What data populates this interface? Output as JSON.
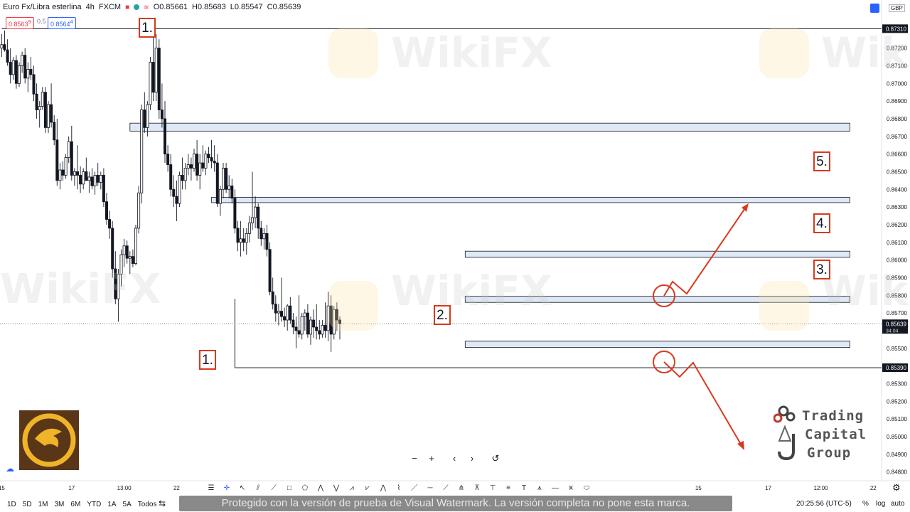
{
  "header": {
    "symbol": "Euro Fx/Libra esterlina",
    "interval": "4h",
    "exchange": "FXCM",
    "ohlc": {
      "o_label": "O",
      "o_value": "0.85661",
      "h_label": "H",
      "h_value": "0.85683",
      "l_label": "L",
      "l_value": "0.85547",
      "c_label": "C",
      "c_value": "0.85639"
    },
    "sell_price": "0.8563",
    "sell_price_sup": "9",
    "spread": "0.5",
    "buy_price": "0.8564",
    "buy_price_sup": "4",
    "currency": "GBP"
  },
  "colors": {
    "up": "#131722",
    "down": "#131722",
    "zone_fill": "#dfe9f5",
    "zone_stroke": "#131722",
    "annotation": "#d9381e",
    "sell": "#f23645",
    "buy": "#2962ff"
  },
  "chart_data": {
    "type": "candlestick",
    "y_range": [
      0.8475,
      0.874
    ],
    "y_ticks": [
      "0.87200",
      "0.87100",
      "0.87000",
      "0.86900",
      "0.86800",
      "0.86700",
      "0.86600",
      "0.86500",
      "0.86400",
      "0.86300",
      "0.86200",
      "0.86100",
      "0.86000",
      "0.85900",
      "0.85800",
      "0.85700",
      "0.85600",
      "0.85500",
      "0.85400",
      "0.85300",
      "0.85200",
      "0.85100",
      "0.85000",
      "0.84900",
      "0.84800"
    ],
    "y_tick_values": [
      0.872,
      0.871,
      0.87,
      0.869,
      0.868,
      0.867,
      0.866,
      0.865,
      0.864,
      0.863,
      0.862,
      0.861,
      0.86,
      0.859,
      0.858,
      0.857,
      0.856,
      0.855,
      0.854,
      0.853,
      0.852,
      0.851,
      0.85,
      0.849,
      0.848
    ],
    "x_ticks": [
      "15",
      "17",
      "13:00",
      "22",
      "15",
      "17",
      "12:00",
      "22"
    ],
    "x_tick_index": [
      0,
      24,
      42,
      60,
      239,
      263,
      281,
      299
    ],
    "price_labels": [
      {
        "value": 0.8731,
        "text": "0.87310"
      },
      {
        "value": 0.85639,
        "text": "0.85639",
        "countdown": "34:04"
      },
      {
        "value": 0.8539,
        "text": "0.85390"
      }
    ],
    "levels": [
      {
        "value": 0.8731,
        "from": 0,
        "to": 299
      },
      {
        "value": 0.8539,
        "from": 80,
        "to": 299
      }
    ],
    "zones": [
      {
        "top": 0.86775,
        "bottom": 0.8673,
        "from": 44,
        "to": 291
      },
      {
        "top": 0.86355,
        "bottom": 0.86325,
        "from": 72,
        "to": 291
      },
      {
        "top": 0.8605,
        "bottom": 0.86015,
        "from": 159,
        "to": 291
      },
      {
        "top": 0.85795,
        "bottom": 0.8576,
        "from": 159,
        "to": 291
      },
      {
        "top": 0.8554,
        "bottom": 0.85505,
        "from": 159,
        "to": 291
      }
    ],
    "candles": [
      [
        0.872,
        0.8728,
        0.8715,
        0.8722
      ],
      [
        0.8722,
        0.873,
        0.8718,
        0.8719
      ],
      [
        0.8719,
        0.8725,
        0.871,
        0.8712
      ],
      [
        0.8712,
        0.872,
        0.87,
        0.8705
      ],
      [
        0.8705,
        0.8715,
        0.8702,
        0.8713
      ],
      [
        0.8713,
        0.8716,
        0.8697,
        0.87
      ],
      [
        0.87,
        0.8712,
        0.8698,
        0.871
      ],
      [
        0.871,
        0.8718,
        0.8706,
        0.8716
      ],
      [
        0.8716,
        0.872,
        0.87,
        0.8703
      ],
      [
        0.8703,
        0.8712,
        0.8695,
        0.8708
      ],
      [
        0.8708,
        0.8715,
        0.8702,
        0.8705
      ],
      [
        0.8705,
        0.871,
        0.869,
        0.8694
      ],
      [
        0.8694,
        0.87,
        0.868,
        0.8685
      ],
      [
        0.8685,
        0.869,
        0.8675,
        0.8687
      ],
      [
        0.8687,
        0.8698,
        0.8685,
        0.8695
      ],
      [
        0.8695,
        0.8698,
        0.8672,
        0.8675
      ],
      [
        0.8675,
        0.869,
        0.8672,
        0.8688
      ],
      [
        0.8688,
        0.87,
        0.8675,
        0.8678
      ],
      [
        0.8678,
        0.8682,
        0.8665,
        0.8668
      ],
      [
        0.8668,
        0.868,
        0.8642,
        0.8645
      ],
      [
        0.8645,
        0.8655,
        0.864,
        0.8651
      ],
      [
        0.8651,
        0.8656,
        0.8645,
        0.8648
      ],
      [
        0.8648,
        0.866,
        0.8646,
        0.8658
      ],
      [
        0.8658,
        0.867,
        0.8655,
        0.8667
      ],
      [
        0.8667,
        0.8676,
        0.8645,
        0.8648
      ],
      [
        0.8648,
        0.8652,
        0.8642,
        0.865
      ],
      [
        0.865,
        0.8665,
        0.864,
        0.8648
      ],
      [
        0.8648,
        0.8653,
        0.8638,
        0.8643
      ],
      [
        0.8643,
        0.8652,
        0.864,
        0.865
      ],
      [
        0.865,
        0.8658,
        0.8645,
        0.8645
      ],
      [
        0.8645,
        0.865,
        0.8638,
        0.8647
      ],
      [
        0.8647,
        0.8652,
        0.864,
        0.8642
      ],
      [
        0.8642,
        0.865,
        0.8637,
        0.8648
      ],
      [
        0.8648,
        0.8655,
        0.8642,
        0.8644
      ],
      [
        0.8644,
        0.865,
        0.864,
        0.8648
      ],
      [
        0.8648,
        0.8652,
        0.863,
        0.8633
      ],
      [
        0.8633,
        0.8638,
        0.862,
        0.8623
      ],
      [
        0.8623,
        0.8628,
        0.8612,
        0.8618
      ],
      [
        0.8618,
        0.8622,
        0.859,
        0.8595
      ],
      [
        0.8595,
        0.8605,
        0.8575,
        0.8578
      ],
      [
        0.8578,
        0.8595,
        0.8565,
        0.8592
      ],
      [
        0.8592,
        0.8606,
        0.8585,
        0.8603
      ],
      [
        0.8603,
        0.8612,
        0.8596,
        0.8608
      ],
      [
        0.8608,
        0.8611,
        0.8598,
        0.8601
      ],
      [
        0.8601,
        0.8605,
        0.8592,
        0.8602
      ],
      [
        0.8602,
        0.8606,
        0.8596,
        0.8598
      ],
      [
        0.8598,
        0.862,
        0.8597,
        0.8618
      ],
      [
        0.8618,
        0.8642,
        0.8615,
        0.8638
      ],
      [
        0.8638,
        0.8688,
        0.8632,
        0.8685
      ],
      [
        0.8685,
        0.8695,
        0.8672,
        0.8675
      ],
      [
        0.8675,
        0.869,
        0.867,
        0.8688
      ],
      [
        0.8688,
        0.8715,
        0.8685,
        0.8712
      ],
      [
        0.8712,
        0.8732,
        0.869,
        0.8695
      ],
      [
        0.8695,
        0.8728,
        0.869,
        0.872
      ],
      [
        0.872,
        0.8725,
        0.868,
        0.8685
      ],
      [
        0.8685,
        0.87,
        0.8675,
        0.868
      ],
      [
        0.868,
        0.869,
        0.8655,
        0.866
      ],
      [
        0.866,
        0.8665,
        0.865,
        0.8654
      ],
      [
        0.8654,
        0.866,
        0.8636,
        0.864
      ],
      [
        0.864,
        0.8648,
        0.863,
        0.8636
      ],
      [
        0.8636,
        0.8645,
        0.8622,
        0.8632
      ],
      [
        0.8632,
        0.865,
        0.863,
        0.8648
      ],
      [
        0.8648,
        0.8658,
        0.864,
        0.8645
      ],
      [
        0.8645,
        0.8655,
        0.864,
        0.8652
      ],
      [
        0.8652,
        0.866,
        0.8648,
        0.8654
      ],
      [
        0.8654,
        0.8658,
        0.8645,
        0.8652
      ],
      [
        0.8652,
        0.8663,
        0.865,
        0.866
      ],
      [
        0.866,
        0.8668,
        0.8645,
        0.8648
      ],
      [
        0.8648,
        0.866,
        0.864,
        0.8655
      ],
      [
        0.8655,
        0.8665,
        0.865,
        0.8652
      ],
      [
        0.8652,
        0.8662,
        0.8648,
        0.866
      ],
      [
        0.866,
        0.8664,
        0.8655,
        0.8658
      ],
      [
        0.8658,
        0.8668,
        0.8652,
        0.8656
      ],
      [
        0.8656,
        0.8665,
        0.865,
        0.8655
      ],
      [
        0.8655,
        0.866,
        0.863,
        0.8632
      ],
      [
        0.8632,
        0.8642,
        0.8625,
        0.864
      ],
      [
        0.864,
        0.8655,
        0.8635,
        0.8652
      ],
      [
        0.8652,
        0.8655,
        0.8638,
        0.864
      ],
      [
        0.864,
        0.8648,
        0.8635,
        0.8642
      ],
      [
        0.8642,
        0.8646,
        0.8632,
        0.8635
      ],
      [
        0.8635,
        0.864,
        0.8615,
        0.8618
      ],
      [
        0.8618,
        0.8622,
        0.8605,
        0.861
      ],
      [
        0.861,
        0.8622,
        0.8602,
        0.8612
      ],
      [
        0.8612,
        0.8618,
        0.8605,
        0.861
      ],
      [
        0.861,
        0.8618,
        0.8603,
        0.8615
      ],
      [
        0.8615,
        0.8625,
        0.861,
        0.8621
      ],
      [
        0.8621,
        0.865,
        0.8617,
        0.8624
      ],
      [
        0.8624,
        0.8636,
        0.8618,
        0.863
      ],
      [
        0.863,
        0.8632,
        0.8612,
        0.8618
      ],
      [
        0.8618,
        0.8622,
        0.8608,
        0.8612
      ],
      [
        0.8612,
        0.8618,
        0.8606,
        0.8615
      ],
      [
        0.8615,
        0.862,
        0.8602,
        0.8606
      ],
      [
        0.8606,
        0.861,
        0.858,
        0.8582
      ],
      [
        0.8582,
        0.859,
        0.8572,
        0.8575
      ],
      [
        0.8575,
        0.858,
        0.8565,
        0.857
      ],
      [
        0.857,
        0.8575,
        0.8563,
        0.8571
      ],
      [
        0.8571,
        0.859,
        0.8565,
        0.8568
      ],
      [
        0.8568,
        0.8573,
        0.8562,
        0.8566
      ],
      [
        0.8566,
        0.8575,
        0.856,
        0.8574
      ],
      [
        0.8574,
        0.8579,
        0.8564,
        0.8566
      ],
      [
        0.8566,
        0.857,
        0.8558,
        0.8562
      ],
      [
        0.8562,
        0.8568,
        0.855,
        0.856
      ],
      [
        0.856,
        0.858,
        0.8556,
        0.8558
      ],
      [
        0.8558,
        0.857,
        0.8555,
        0.8568
      ],
      [
        0.8568,
        0.8572,
        0.856,
        0.857
      ],
      [
        0.857,
        0.8575,
        0.8556,
        0.8558
      ],
      [
        0.8558,
        0.8568,
        0.8552,
        0.8566
      ],
      [
        0.8566,
        0.8572,
        0.8556,
        0.8562
      ],
      [
        0.8562,
        0.8575,
        0.8555,
        0.856
      ],
      [
        0.856,
        0.8566,
        0.8555,
        0.8558
      ],
      [
        0.8558,
        0.8566,
        0.8556,
        0.8563
      ],
      [
        0.8563,
        0.8576,
        0.8556,
        0.856
      ],
      [
        0.856,
        0.8582,
        0.8554,
        0.8574
      ],
      [
        0.8574,
        0.858,
        0.8548,
        0.8558
      ],
      [
        0.8558,
        0.8574,
        0.8555,
        0.8572
      ],
      [
        0.8572,
        0.8576,
        0.856,
        0.8566
      ],
      [
        0.8566,
        0.8568,
        0.8555,
        0.8564
      ]
    ]
  },
  "annotations": {
    "labels": [
      "1.",
      "1.",
      "2.",
      "3.",
      "4.",
      "5."
    ]
  },
  "bottom": {
    "timeframes": [
      "1D",
      "5D",
      "1M",
      "3M",
      "6M",
      "YTD",
      "1A",
      "5A",
      "Todos"
    ],
    "watermark": "Protegido con la versión de prueba de Visual Watermark. La versión completa no pone esta marca.",
    "clock": "20:25:56 (UTC-5)",
    "percent": "%",
    "log": "log",
    "auto": "auto"
  },
  "nav": {
    "zoom_out": "−",
    "zoom_in": "+",
    "left": "‹",
    "right": "›",
    "reset": "↺"
  },
  "brand": {
    "tcg_line1": "Trading",
    "tcg_line2": "Capital",
    "tcg_line3": "Group",
    "wikifx": "WikiFX"
  },
  "icons": {
    "settings": "gear-icon",
    "cloud": "cloud-icon",
    "compare": "compare-icon"
  }
}
